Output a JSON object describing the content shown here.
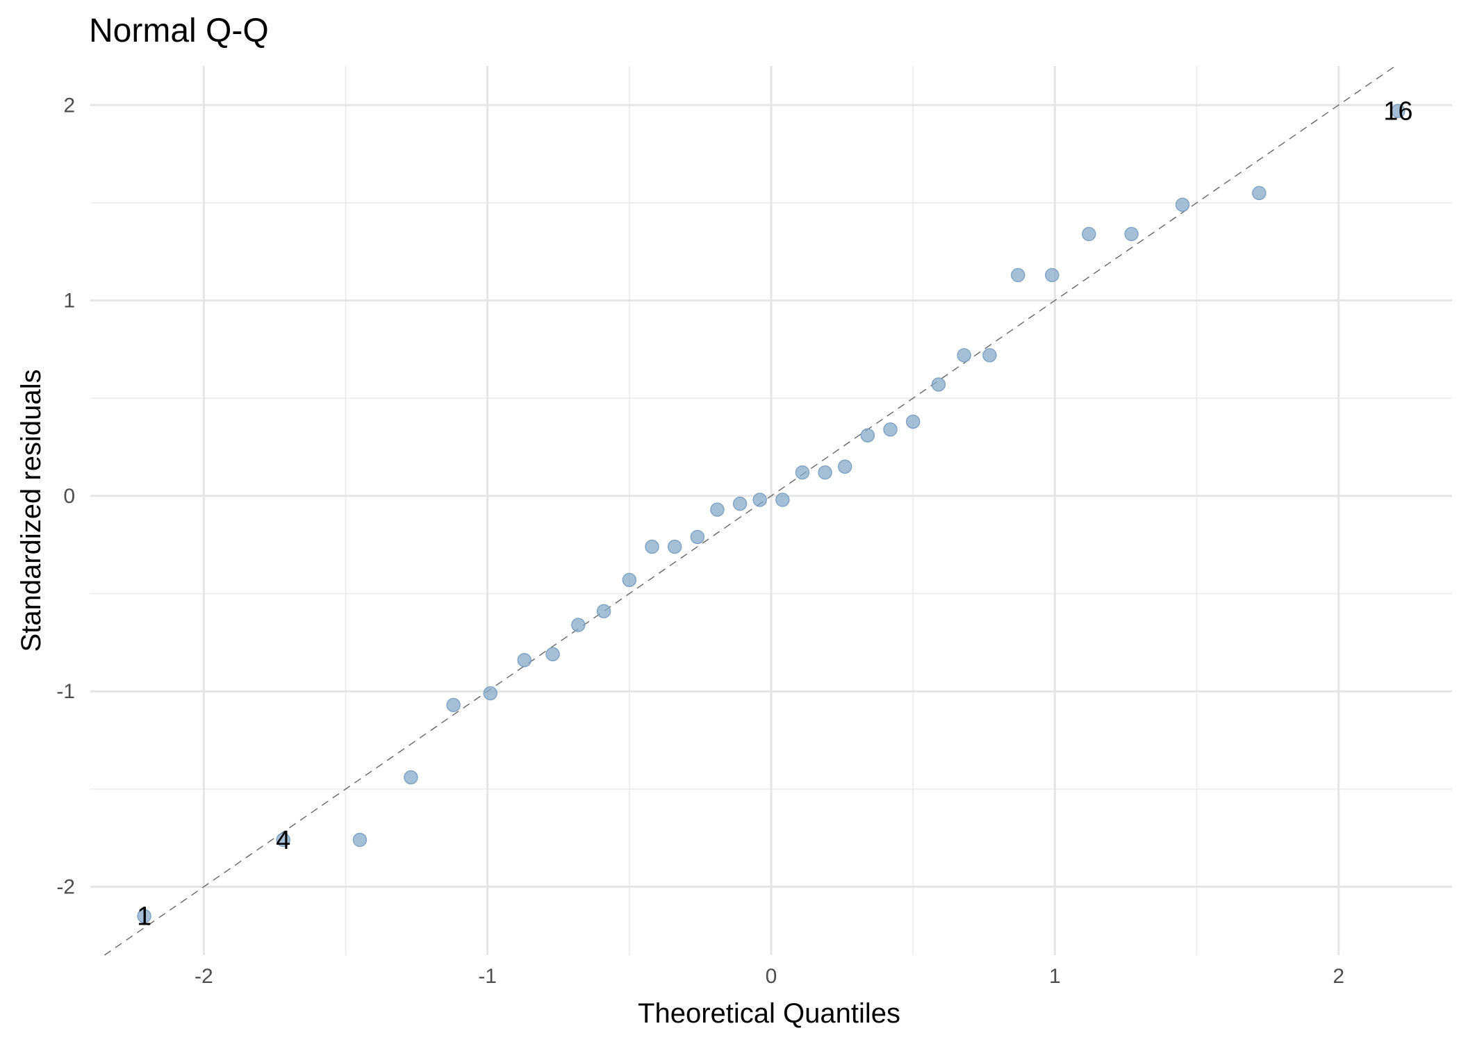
{
  "chart_data": {
    "type": "scatter",
    "title": "Normal Q-Q",
    "xlabel": "Theoretical Quantiles",
    "ylabel": "Standardized residuals",
    "xlim": [
      -2.4,
      2.4
    ],
    "ylim": [
      -2.35,
      2.2
    ],
    "x_ticks": [
      -2,
      -1,
      0,
      1,
      2
    ],
    "x_tick_labels": [
      "-2",
      "-1",
      "0",
      "1",
      "2"
    ],
    "y_ticks": [
      -2,
      -1,
      0,
      1,
      2
    ],
    "y_tick_labels": [
      "-2",
      "-1",
      "0",
      "1",
      "2"
    ],
    "grid": true,
    "reference_line": {
      "slope": 1,
      "intercept": 0,
      "style": "dashed"
    },
    "point_color": "#87a9c8",
    "points": [
      {
        "x": -2.21,
        "y": -2.15,
        "label": "1"
      },
      {
        "x": -1.72,
        "y": -1.76,
        "label": "4"
      },
      {
        "x": -1.45,
        "y": -1.76
      },
      {
        "x": -1.27,
        "y": -1.44
      },
      {
        "x": -1.12,
        "y": -1.07
      },
      {
        "x": -0.99,
        "y": -1.01
      },
      {
        "x": -0.87,
        "y": -0.84
      },
      {
        "x": -0.77,
        "y": -0.81
      },
      {
        "x": -0.68,
        "y": -0.66
      },
      {
        "x": -0.59,
        "y": -0.59
      },
      {
        "x": -0.5,
        "y": -0.43
      },
      {
        "x": -0.42,
        "y": -0.26
      },
      {
        "x": -0.34,
        "y": -0.26
      },
      {
        "x": -0.26,
        "y": -0.21
      },
      {
        "x": -0.19,
        "y": -0.07
      },
      {
        "x": -0.11,
        "y": -0.04
      },
      {
        "x": -0.04,
        "y": -0.02
      },
      {
        "x": 0.04,
        "y": -0.02
      },
      {
        "x": 0.11,
        "y": 0.12
      },
      {
        "x": 0.19,
        "y": 0.12
      },
      {
        "x": 0.26,
        "y": 0.15
      },
      {
        "x": 0.34,
        "y": 0.31
      },
      {
        "x": 0.42,
        "y": 0.34
      },
      {
        "x": 0.5,
        "y": 0.38
      },
      {
        "x": 0.59,
        "y": 0.57
      },
      {
        "x": 0.68,
        "y": 0.72
      },
      {
        "x": 0.77,
        "y": 0.72
      },
      {
        "x": 0.87,
        "y": 1.13
      },
      {
        "x": 0.99,
        "y": 1.13
      },
      {
        "x": 1.12,
        "y": 1.34
      },
      {
        "x": 1.27,
        "y": 1.34
      },
      {
        "x": 1.45,
        "y": 1.49
      },
      {
        "x": 1.72,
        "y": 1.55
      },
      {
        "x": 2.21,
        "y": 1.97,
        "label": "16"
      }
    ]
  }
}
